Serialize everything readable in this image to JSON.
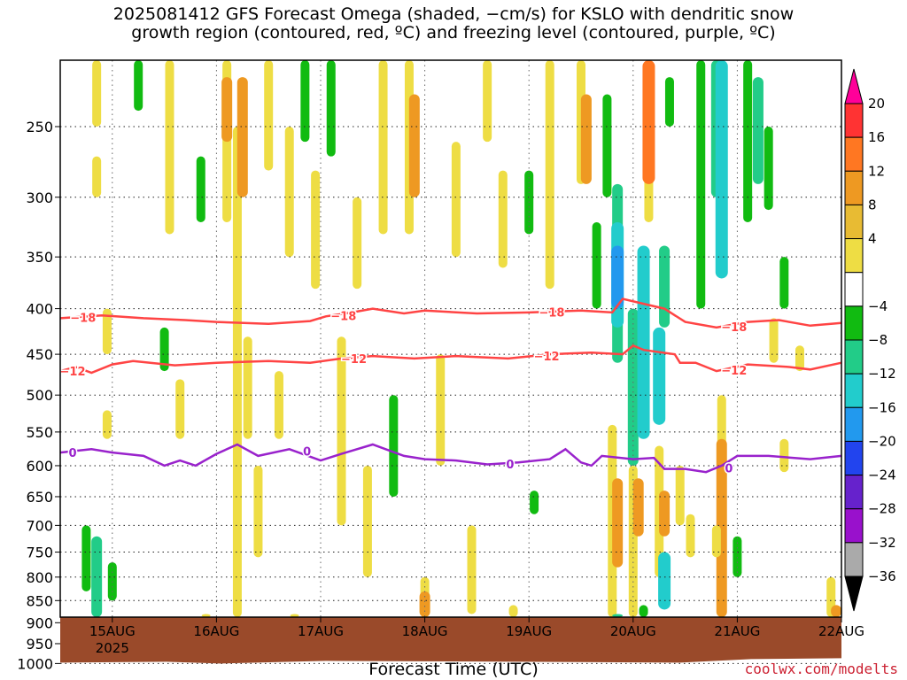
{
  "chart_data": {
    "type": "heatmap",
    "title_line1": "2025081412 GFS Forecast Omega (shaded, −cm/s) for KSLO with dendritic snow",
    "title_line2": "growth region (contoured, red, ºC) and freezing level (contoured, purple, ºC)",
    "xlabel": "Forecast Time (UTC)",
    "credit": "coolwx.com/modelts",
    "x_ticks": [
      "15AUG",
      "16AUG",
      "17AUG",
      "18AUG",
      "19AUG",
      "20AUG",
      "21AUG",
      "22AUG"
    ],
    "x_year_label": "2025",
    "x_range_days": [
      14.5,
      22.0
    ],
    "y_ticks": [
      250,
      300,
      350,
      400,
      450,
      500,
      550,
      600,
      650,
      700,
      750,
      800,
      850,
      900,
      950,
      1000
    ],
    "y_range_hpa": [
      200,
      1020
    ],
    "y_scale": "log-pressure",
    "colorbar_labels": [
      "20",
      "16",
      "12",
      "8",
      "4",
      "−4",
      "−8",
      "−12",
      "−16",
      "−20",
      "−24",
      "−28",
      "−32",
      "−36"
    ],
    "colorbar_colors": [
      "#ff0099",
      "#ff3333",
      "#ff7722",
      "#ee9922",
      "#e8bb33",
      "#eedd44",
      "#ffffff",
      "#11bb11",
      "#22cc88",
      "#22cccc",
      "#2299ee",
      "#2244ee",
      "#6622cc",
      "#9911cc",
      "#aaaaaa",
      "#000000"
    ],
    "contours": [
      {
        "label": "−18",
        "color": "#ff4444",
        "points": [
          [
            14.5,
            410
          ],
          [
            14.9,
            407
          ],
          [
            15.3,
            410
          ],
          [
            15.7,
            412
          ],
          [
            16.0,
            414
          ],
          [
            16.5,
            416
          ],
          [
            16.9,
            413
          ],
          [
            17.05,
            408
          ],
          [
            17.3,
            404
          ],
          [
            17.5,
            400
          ],
          [
            17.8,
            405
          ],
          [
            18.0,
            402
          ],
          [
            18.5,
            405
          ],
          [
            19.0,
            404
          ],
          [
            19.5,
            402
          ],
          [
            19.8,
            404
          ],
          [
            19.9,
            390
          ],
          [
            20.1,
            395
          ],
          [
            20.3,
            400
          ],
          [
            20.5,
            414
          ],
          [
            20.8,
            420
          ],
          [
            21.1,
            414
          ],
          [
            21.4,
            412
          ],
          [
            21.7,
            418
          ],
          [
            22.0,
            415
          ]
        ],
        "label_days": [
          14.6,
          17.1,
          19.1,
          20.85
        ]
      },
      {
        "label": "−12",
        "color": "#ff4444",
        "points": [
          [
            14.5,
            470
          ],
          [
            14.65,
            465
          ],
          [
            14.8,
            472
          ],
          [
            15.0,
            462
          ],
          [
            15.2,
            458
          ],
          [
            15.6,
            463
          ],
          [
            16.0,
            460
          ],
          [
            16.5,
            458
          ],
          [
            16.9,
            460
          ],
          [
            17.2,
            455
          ],
          [
            17.5,
            452
          ],
          [
            17.9,
            455
          ],
          [
            18.3,
            452
          ],
          [
            18.8,
            455
          ],
          [
            19.2,
            450
          ],
          [
            19.6,
            448
          ],
          [
            19.9,
            450
          ],
          [
            20.0,
            440
          ],
          [
            20.1,
            445
          ],
          [
            20.4,
            450
          ],
          [
            20.45,
            460
          ],
          [
            20.6,
            460
          ],
          [
            20.8,
            470
          ],
          [
            21.1,
            462
          ],
          [
            21.5,
            465
          ],
          [
            21.7,
            468
          ],
          [
            22.0,
            460
          ]
        ],
        "label_days": [
          14.5,
          17.2,
          19.05,
          20.85
        ]
      },
      {
        "label": "0",
        "color": "#9922cc",
        "points": [
          [
            14.5,
            580
          ],
          [
            14.8,
            575
          ],
          [
            15.0,
            580
          ],
          [
            15.3,
            585
          ],
          [
            15.5,
            600
          ],
          [
            15.65,
            592
          ],
          [
            15.8,
            600
          ],
          [
            16.0,
            582
          ],
          [
            16.2,
            568
          ],
          [
            16.4,
            585
          ],
          [
            16.7,
            575
          ],
          [
            17.0,
            592
          ],
          [
            17.2,
            582
          ],
          [
            17.5,
            568
          ],
          [
            17.8,
            585
          ],
          [
            18.0,
            590
          ],
          [
            18.3,
            592
          ],
          [
            18.6,
            598
          ],
          [
            18.9,
            595
          ],
          [
            19.2,
            590
          ],
          [
            19.35,
            575
          ],
          [
            19.5,
            595
          ],
          [
            19.6,
            600
          ],
          [
            19.7,
            585
          ],
          [
            20.0,
            590
          ],
          [
            20.2,
            588
          ],
          [
            20.3,
            605
          ],
          [
            20.5,
            605
          ],
          [
            20.7,
            610
          ],
          [
            20.85,
            600
          ],
          [
            21.0,
            585
          ],
          [
            21.3,
            585
          ],
          [
            21.7,
            590
          ],
          [
            22.0,
            585
          ]
        ],
        "label_days": [
          14.5,
          16.75,
          18.7,
          20.8
        ]
      }
    ],
    "shaded_regions": [
      {
        "day": 14.85,
        "p0": 200,
        "p1": 250,
        "value": 4
      },
      {
        "day": 14.85,
        "p0": 270,
        "p1": 300,
        "value": 4
      },
      {
        "day": 14.95,
        "p0": 400,
        "p1": 450,
        "value": 4
      },
      {
        "day": 14.95,
        "p0": 520,
        "p1": 560,
        "value": 4
      },
      {
        "day": 14.75,
        "p0": 700,
        "p1": 830,
        "value": -4
      },
      {
        "day": 14.85,
        "p0": 720,
        "p1": 900,
        "value": -8
      },
      {
        "day": 15.0,
        "p0": 770,
        "p1": 850,
        "value": -4
      },
      {
        "day": 15.25,
        "p0": 200,
        "p1": 240,
        "value": -4
      },
      {
        "day": 15.55,
        "p0": 200,
        "p1": 330,
        "value": 4
      },
      {
        "day": 15.5,
        "p0": 420,
        "p1": 470,
        "value": -4
      },
      {
        "day": 15.65,
        "p0": 480,
        "p1": 560,
        "value": 4
      },
      {
        "day": 15.85,
        "p0": 270,
        "p1": 320,
        "value": -4
      },
      {
        "day": 15.9,
        "p0": 880,
        "p1": 960,
        "value": 4
      },
      {
        "day": 16.1,
        "p0": 200,
        "p1": 320,
        "value": 4
      },
      {
        "day": 16.1,
        "p0": 220,
        "p1": 260,
        "value": 8
      },
      {
        "day": 16.2,
        "p0": 250,
        "p1": 900,
        "value": 4
      },
      {
        "day": 16.25,
        "p0": 220,
        "p1": 300,
        "value": 8
      },
      {
        "day": 16.3,
        "p0": 430,
        "p1": 560,
        "value": 4
      },
      {
        "day": 16.4,
        "p0": 600,
        "p1": 760,
        "value": 4
      },
      {
        "day": 16.5,
        "p0": 200,
        "p1": 280,
        "value": 4
      },
      {
        "day": 16.6,
        "p0": 470,
        "p1": 560,
        "value": 4
      },
      {
        "day": 16.7,
        "p0": 250,
        "p1": 350,
        "value": 4
      },
      {
        "day": 16.75,
        "p0": 880,
        "p1": 960,
        "value": 4
      },
      {
        "day": 16.85,
        "p0": 200,
        "p1": 260,
        "value": -4
      },
      {
        "day": 16.95,
        "p0": 280,
        "p1": 380,
        "value": 4
      },
      {
        "day": 17.1,
        "p0": 200,
        "p1": 270,
        "value": -4
      },
      {
        "day": 17.2,
        "p0": 430,
        "p1": 700,
        "value": 4
      },
      {
        "day": 17.35,
        "p0": 300,
        "p1": 380,
        "value": 4
      },
      {
        "day": 17.45,
        "p0": 600,
        "p1": 800,
        "value": 4
      },
      {
        "day": 17.6,
        "p0": 200,
        "p1": 330,
        "value": 4
      },
      {
        "day": 17.7,
        "p0": 500,
        "p1": 650,
        "value": -4
      },
      {
        "day": 17.85,
        "p0": 200,
        "p1": 330,
        "value": 4
      },
      {
        "day": 17.9,
        "p0": 230,
        "p1": 300,
        "value": 8
      },
      {
        "day": 18.0,
        "p0": 800,
        "p1": 950,
        "value": 4
      },
      {
        "day": 18.0,
        "p0": 830,
        "p1": 920,
        "value": 8
      },
      {
        "day": 18.15,
        "p0": 450,
        "p1": 600,
        "value": 4
      },
      {
        "day": 18.3,
        "p0": 260,
        "p1": 350,
        "value": 4
      },
      {
        "day": 18.45,
        "p0": 700,
        "p1": 880,
        "value": 4
      },
      {
        "day": 18.6,
        "p0": 200,
        "p1": 260,
        "value": 4
      },
      {
        "day": 18.75,
        "p0": 280,
        "p1": 360,
        "value": 4
      },
      {
        "day": 18.85,
        "p0": 860,
        "p1": 960,
        "value": 4
      },
      {
        "day": 19.0,
        "p0": 280,
        "p1": 330,
        "value": -4
      },
      {
        "day": 19.05,
        "p0": 640,
        "p1": 680,
        "value": -4
      },
      {
        "day": 19.2,
        "p0": 200,
        "p1": 380,
        "value": 4
      },
      {
        "day": 19.5,
        "p0": 210,
        "p1": 290,
        "value": 4
      },
      {
        "day": 19.55,
        "p0": 230,
        "p1": 290,
        "value": 8
      },
      {
        "day": 19.65,
        "p0": 320,
        "p1": 400,
        "value": -4
      },
      {
        "day": 19.75,
        "p0": 230,
        "p1": 300,
        "value": -4
      },
      {
        "day": 19.85,
        "p0": 290,
        "p1": 460,
        "value": -8
      },
      {
        "day": 19.85,
        "p0": 320,
        "p1": 420,
        "value": -12
      },
      {
        "day": 19.85,
        "p0": 340,
        "p1": 400,
        "value": -16
      },
      {
        "day": 19.8,
        "p0": 540,
        "p1": 960,
        "value": 4
      },
      {
        "day": 19.85,
        "p0": 620,
        "p1": 780,
        "value": 8
      },
      {
        "day": 19.85,
        "p0": 880,
        "p1": 960,
        "value": -8
      },
      {
        "day": 20.0,
        "p0": 400,
        "p1": 600,
        "value": -8
      },
      {
        "day": 20.1,
        "p0": 340,
        "p1": 560,
        "value": -12
      },
      {
        "day": 20.0,
        "p0": 600,
        "p1": 950,
        "value": 4
      },
      {
        "day": 20.05,
        "p0": 620,
        "p1": 720,
        "value": 8
      },
      {
        "day": 20.1,
        "p0": 860,
        "p1": 950,
        "value": -4
      },
      {
        "day": 20.15,
        "p0": 200,
        "p1": 320,
        "value": 4
      },
      {
        "day": 20.15,
        "p0": 210,
        "p1": 290,
        "value": 12
      },
      {
        "day": 20.25,
        "p0": 420,
        "p1": 540,
        "value": -12
      },
      {
        "day": 20.3,
        "p0": 340,
        "p1": 420,
        "value": -8
      },
      {
        "day": 20.25,
        "p0": 570,
        "p1": 800,
        "value": 4
      },
      {
        "day": 20.3,
        "p0": 640,
        "p1": 720,
        "value": 8
      },
      {
        "day": 20.3,
        "p0": 750,
        "p1": 870,
        "value": -12
      },
      {
        "day": 20.35,
        "p0": 220,
        "p1": 250,
        "value": -4
      },
      {
        "day": 20.45,
        "p0": 600,
        "p1": 700,
        "value": 4
      },
      {
        "day": 20.55,
        "p0": 680,
        "p1": 760,
        "value": 4
      },
      {
        "day": 20.65,
        "p0": 200,
        "p1": 400,
        "value": -4
      },
      {
        "day": 20.8,
        "p0": 200,
        "p1": 300,
        "value": -8
      },
      {
        "day": 20.85,
        "p0": 200,
        "p1": 370,
        "value": -12
      },
      {
        "day": 20.85,
        "p0": 500,
        "p1": 960,
        "value": 4
      },
      {
        "day": 20.85,
        "p0": 560,
        "p1": 900,
        "value": 8
      },
      {
        "day": 20.8,
        "p0": 700,
        "p1": 760,
        "value": 4
      },
      {
        "day": 21.0,
        "p0": 720,
        "p1": 800,
        "value": -4
      },
      {
        "day": 21.1,
        "p0": 200,
        "p1": 320,
        "value": -4
      },
      {
        "day": 21.2,
        "p0": 220,
        "p1": 290,
        "value": -8
      },
      {
        "day": 21.3,
        "p0": 250,
        "p1": 310,
        "value": -4
      },
      {
        "day": 21.35,
        "p0": 410,
        "p1": 460,
        "value": 4
      },
      {
        "day": 21.45,
        "p0": 350,
        "p1": 400,
        "value": -4
      },
      {
        "day": 21.45,
        "p0": 560,
        "p1": 610,
        "value": 4
      },
      {
        "day": 21.6,
        "p0": 440,
        "p1": 470,
        "value": 4
      },
      {
        "day": 21.9,
        "p0": 800,
        "p1": 960,
        "value": 4
      },
      {
        "day": 21.95,
        "p0": 860,
        "p1": 920,
        "value": 8
      }
    ]
  }
}
